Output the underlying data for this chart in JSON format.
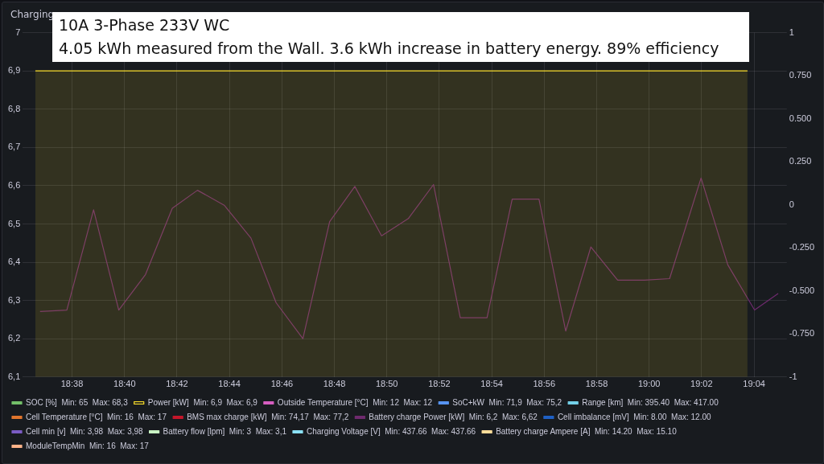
{
  "chart_data": {
    "type": "line",
    "title": "Charging",
    "annotations": [
      "10A 3-Phase 233V WC",
      "4.05 kWh measured from the Wall. 3.6 kWh increase in battery energy. 89% efficiency"
    ],
    "x": [
      18.613,
      18.63,
      18.647,
      18.663,
      18.68,
      18.697,
      18.713,
      18.73,
      18.747,
      18.763,
      18.78,
      18.797,
      18.813,
      18.83,
      18.847,
      18.863,
      18.88,
      18.897,
      18.913,
      18.93,
      18.947,
      18.963,
      18.98,
      18.997,
      19.013,
      19.033,
      19.05,
      19.067,
      19.082
    ],
    "xlim": [
      18.602,
      19.0875
    ],
    "xticks": [
      {
        "value": 18.6333,
        "label": "18:38"
      },
      {
        "value": 18.6667,
        "label": "18:40"
      },
      {
        "value": 18.7,
        "label": "18:42"
      },
      {
        "value": 18.7333,
        "label": "18:44"
      },
      {
        "value": 18.7667,
        "label": "18:46"
      },
      {
        "value": 18.8,
        "label": "18:48"
      },
      {
        "value": 18.8333,
        "label": "18:50"
      },
      {
        "value": 18.8667,
        "label": "18:52"
      },
      {
        "value": 18.9,
        "label": "18:54"
      },
      {
        "value": 18.9333,
        "label": "18:56"
      },
      {
        "value": 18.9667,
        "label": "18:58"
      },
      {
        "value": 19.0,
        "label": "19:00"
      },
      {
        "value": 19.0333,
        "label": "19:02"
      },
      {
        "value": 19.0667,
        "label": "19:04"
      }
    ],
    "ylim": [
      6.1,
      7
    ],
    "yticks": [
      {
        "value": 6.1,
        "label": "6,1"
      },
      {
        "value": 6.2,
        "label": "6,2"
      },
      {
        "value": 6.3,
        "label": "6,3"
      },
      {
        "value": 6.4,
        "label": "6,4"
      },
      {
        "value": 6.5,
        "label": "6,5"
      },
      {
        "value": 6.6,
        "label": "6,6"
      },
      {
        "value": 6.7,
        "label": "6,7"
      },
      {
        "value": 6.8,
        "label": "6,8"
      },
      {
        "value": 6.9,
        "label": "6,9"
      },
      7
    ],
    "y2lim": [
      -1,
      1
    ],
    "y2ticks": [
      -1,
      {
        "value": -0.75,
        "label": "-0.750"
      },
      {
        "value": -0.5,
        "label": "-0.500"
      },
      {
        "value": -0.25,
        "label": "-0.250"
      },
      0,
      {
        "value": 0.25,
        "label": "0.250"
      },
      {
        "value": 0.5,
        "label": "0.500"
      },
      {
        "value": 0.75,
        "label": "0.750"
      },
      1
    ],
    "grid": true,
    "legend": "bottom",
    "marker": "none",
    "series": [
      {
        "name": "SOC [%]  Min: 65  Max: 68,3",
        "color": "#73bf69",
        "values": [
          null,
          null,
          null,
          null,
          null,
          null,
          null,
          null,
          null,
          null,
          null,
          null,
          null,
          null,
          null,
          null,
          null,
          null,
          null,
          null,
          null,
          null,
          null,
          null,
          null,
          null,
          null,
          null,
          null
        ]
      },
      {
        "name": "Power [kW]  Min: 6,9  Max: 6,9",
        "type": "area",
        "color": "#fade2a",
        "x": [
          18.61,
          19.0625
        ],
        "values": [
          6.9,
          6.9
        ]
      },
      {
        "name": "Outside Temperature [°C]  Min: 12  Max: 12",
        "color": "#d65ec0",
        "values": [
          null,
          null,
          null,
          null,
          null,
          null,
          null,
          null,
          null,
          null,
          null,
          null,
          null,
          null,
          null,
          null,
          null,
          null,
          null,
          null,
          null,
          null,
          null,
          null,
          null,
          null,
          null,
          null,
          null
        ]
      },
      {
        "name": "SoC+kW  Min: 71,9  Max: 75,2",
        "color": "#5794f2",
        "values": [
          null,
          null,
          null,
          null,
          null,
          null,
          null,
          null,
          null,
          null,
          null,
          null,
          null,
          null,
          null,
          null,
          null,
          null,
          null,
          null,
          null,
          null,
          null,
          null,
          null,
          null,
          null,
          null,
          null
        ]
      },
      {
        "name": "Range [km]  Min: 395.40  Max: 417.00",
        "color": "#73d0e8",
        "values": [
          null,
          null,
          null,
          null,
          null,
          null,
          null,
          null,
          null,
          null,
          null,
          null,
          null,
          null,
          null,
          null,
          null,
          null,
          null,
          null,
          null,
          null,
          null,
          null,
          null,
          null,
          null,
          null,
          null
        ]
      },
      {
        "name": "Cell Temperature [°C]  Min: 16  Max: 17",
        "color": "#e0752d",
        "values": [
          null,
          null,
          null,
          null,
          null,
          null,
          null,
          null,
          null,
          null,
          null,
          null,
          null,
          null,
          null,
          null,
          null,
          null,
          null,
          null,
          null,
          null,
          null,
          null,
          null,
          null,
          null,
          null,
          null
        ]
      },
      {
        "name": "BMS max charge [kW]  Min: 74,17  Max: 77,2",
        "color": "#c4162a",
        "values": [
          null,
          null,
          null,
          null,
          null,
          null,
          null,
          null,
          null,
          null,
          null,
          null,
          null,
          null,
          null,
          null,
          null,
          null,
          null,
          null,
          null,
          null,
          null,
          null,
          null,
          null,
          null,
          null,
          null
        ]
      },
      {
        "name": "Battery charge Power [kW]  Min: 6,2  Max: 6,62",
        "color": "#6e2a6e",
        "values": [
          6.271,
          6.275,
          6.537,
          6.275,
          6.368,
          6.541,
          6.588,
          6.549,
          6.463,
          6.294,
          6.2,
          6.506,
          6.598,
          6.469,
          6.514,
          6.603,
          6.255,
          6.255,
          6.565,
          6.565,
          6.22,
          6.44,
          6.353,
          6.353,
          6.357,
          6.62,
          6.393,
          6.275,
          6.318
        ]
      },
      {
        "name": "Cell imbalance [mV]  Min: 8.00  Max: 12.00",
        "color": "#1f60c4",
        "values": [
          null,
          null,
          null,
          null,
          null,
          null,
          null,
          null,
          null,
          null,
          null,
          null,
          null,
          null,
          null,
          null,
          null,
          null,
          null,
          null,
          null,
          null,
          null,
          null,
          null,
          null,
          null,
          null,
          null
        ]
      },
      {
        "name": "Cell min [v]  Min: 3,98  Max: 3,98",
        "color": "#7b5cc4",
        "values": [
          null,
          null,
          null,
          null,
          null,
          null,
          null,
          null,
          null,
          null,
          null,
          null,
          null,
          null,
          null,
          null,
          null,
          null,
          null,
          null,
          null,
          null,
          null,
          null,
          null,
          null,
          null,
          null,
          null
        ]
      },
      {
        "name": "Battery flow [lpm]  Min: 3  Max: 3,1",
        "color": "#c8f2c2",
        "values": [
          null,
          null,
          null,
          null,
          null,
          null,
          null,
          null,
          null,
          null,
          null,
          null,
          null,
          null,
          null,
          null,
          null,
          null,
          null,
          null,
          null,
          null,
          null,
          null,
          null,
          null,
          null,
          null,
          null
        ]
      },
      {
        "name": "Charging Voltage [V]  Min: 437.66  Max: 437.66",
        "color": "#8ae0f5",
        "values": [
          null,
          null,
          null,
          null,
          null,
          null,
          null,
          null,
          null,
          null,
          null,
          null,
          null,
          null,
          null,
          null,
          null,
          null,
          null,
          null,
          null,
          null,
          null,
          null,
          null,
          null,
          null,
          null,
          null
        ]
      },
      {
        "name": "Battery charge Ampere [A]  Min: 14.20  Max: 15.10",
        "color": "#ffdd99",
        "values": [
          null,
          null,
          null,
          null,
          null,
          null,
          null,
          null,
          null,
          null,
          null,
          null,
          null,
          null,
          null,
          null,
          null,
          null,
          null,
          null,
          null,
          null,
          null,
          null,
          null,
          null,
          null,
          null,
          null
        ]
      },
      {
        "name": "ModuleTempMin  Min: 16  Max: 17",
        "color": "#ffb38a",
        "values": [
          null,
          null,
          null,
          null,
          null,
          null,
          null,
          null,
          null,
          null,
          null,
          null,
          null,
          null,
          null,
          null,
          null,
          null,
          null,
          null,
          null,
          null,
          null,
          null,
          null,
          null,
          null,
          null,
          null
        ]
      }
    ]
  }
}
